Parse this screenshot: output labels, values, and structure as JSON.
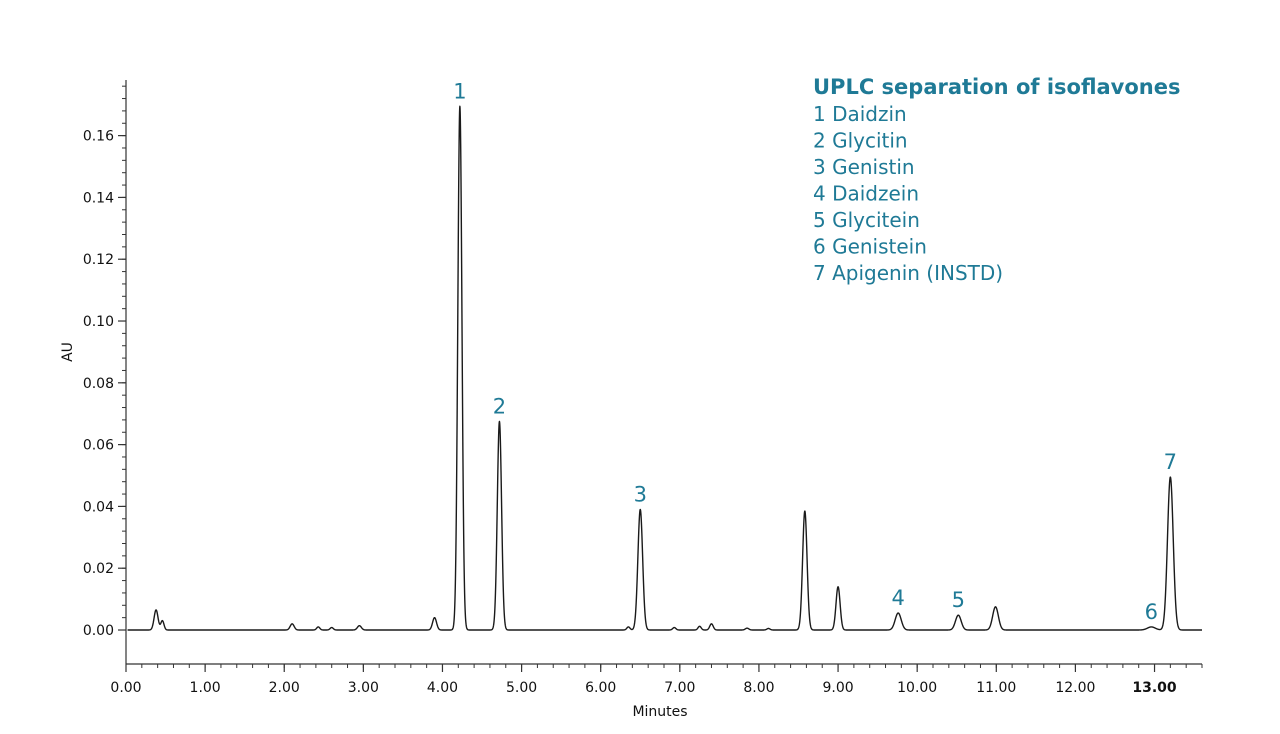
{
  "chart_data": {
    "type": "line",
    "xlabel": "Minutes",
    "ylabel": "AU",
    "xlim": [
      0,
      13.6
    ],
    "ylim": [
      -0.011,
      0.178
    ],
    "x_ticks": [
      0,
      1,
      2,
      3,
      4,
      5,
      6,
      7,
      8,
      9,
      10,
      11,
      12,
      13
    ],
    "x_tick_labels": [
      "0.00",
      "1.00",
      "2.00",
      "3.00",
      "4.00",
      "5.00",
      "6.00",
      "7.00",
      "8.00",
      "9.00",
      "10.00",
      "11.00",
      "12.00",
      "13.00"
    ],
    "x_bold_tick": "13.00",
    "y_ticks": [
      0,
      0.02,
      0.04,
      0.06,
      0.08,
      0.1,
      0.12,
      0.14,
      0.16
    ],
    "y_tick_labels": [
      "0.00",
      "0.02",
      "0.04",
      "0.06",
      "0.08",
      "0.10",
      "0.12",
      "0.14",
      "0.16"
    ],
    "grid": false,
    "line_color": "#1a1a1a",
    "accent_color": "#1f7a96",
    "baseline": 0.0,
    "x_end": 13.6,
    "peaks": [
      {
        "t": 0.38,
        "h": 0.0065,
        "w": 0.025
      },
      {
        "t": 0.46,
        "h": 0.003,
        "w": 0.02
      },
      {
        "t": 2.1,
        "h": 0.002,
        "w": 0.025
      },
      {
        "t": 2.43,
        "h": 0.001,
        "w": 0.02
      },
      {
        "t": 2.6,
        "h": 0.0008,
        "w": 0.02
      },
      {
        "t": 2.95,
        "h": 0.0014,
        "w": 0.025
      },
      {
        "t": 3.9,
        "h": 0.004,
        "w": 0.025
      },
      {
        "t": 4.22,
        "h": 0.1695,
        "w": 0.026
      },
      {
        "t": 4.72,
        "h": 0.0675,
        "w": 0.027
      },
      {
        "t": 6.35,
        "h": 0.001,
        "w": 0.02
      },
      {
        "t": 6.5,
        "h": 0.039,
        "w": 0.03
      },
      {
        "t": 6.93,
        "h": 0.0008,
        "w": 0.02
      },
      {
        "t": 7.25,
        "h": 0.0012,
        "w": 0.02
      },
      {
        "t": 7.4,
        "h": 0.002,
        "w": 0.022
      },
      {
        "t": 7.85,
        "h": 0.0006,
        "w": 0.022
      },
      {
        "t": 8.12,
        "h": 0.0005,
        "w": 0.02
      },
      {
        "t": 8.58,
        "h": 0.0385,
        "w": 0.028
      },
      {
        "t": 9.0,
        "h": 0.014,
        "w": 0.026
      },
      {
        "t": 9.76,
        "h": 0.0055,
        "w": 0.038
      },
      {
        "t": 10.52,
        "h": 0.0048,
        "w": 0.036
      },
      {
        "t": 10.99,
        "h": 0.0075,
        "w": 0.036
      },
      {
        "t": 12.96,
        "h": 0.001,
        "w": 0.05
      },
      {
        "t": 13.2,
        "h": 0.0495,
        "w": 0.036
      }
    ],
    "annotations": [
      {
        "label": "1",
        "x": 4.22,
        "y": 0.1695
      },
      {
        "label": "2",
        "x": 4.72,
        "y": 0.0675
      },
      {
        "label": "3",
        "x": 6.5,
        "y": 0.039
      },
      {
        "label": "4",
        "x": 9.76,
        "y": 0.0055
      },
      {
        "label": "5",
        "x": 10.52,
        "y": 0.0048
      },
      {
        "label": "6",
        "x": 12.96,
        "y": 0.001
      },
      {
        "label": "7",
        "x": 13.2,
        "y": 0.0495
      }
    ],
    "legend": {
      "title": "UPLC separation of isoflavones",
      "items": [
        "1 Daidzin",
        "2 Glycitin",
        "3 Genistin",
        "4 Daidzein",
        "5 Glycitein",
        "6 Genistein",
        "7 Apigenin (INSTD)"
      ],
      "position": "top-right"
    }
  }
}
